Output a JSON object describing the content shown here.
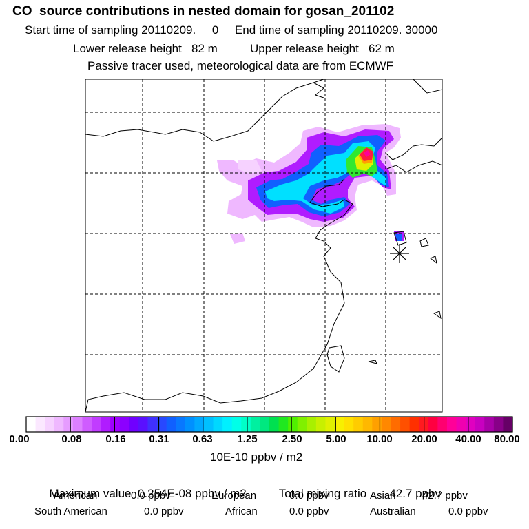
{
  "header": {
    "title": "CO  source contributions in nested domain for gosan_201102",
    "sampling": "Start time of sampling 20110209.     0     End time of sampling 20110209. 30000",
    "heights": "Lower release height   82 m          Upper release height   62 m",
    "tracer": "Passive tracer used, meteorological data are from ECMWF"
  },
  "colorbar": {
    "tick_labels": [
      "0.00",
      "0.08",
      "0.16",
      "0.31",
      "0.63",
      "1.25",
      "2.50",
      "5.00",
      "10.00",
      "20.00",
      "40.00",
      "80.00"
    ],
    "unit": "10E-10 ppbv / m2",
    "colors": [
      "#ffffff",
      "#fbe8ff",
      "#f6d2ff",
      "#efb8ff",
      "#e69cff",
      "#dd80ff",
      "#cf5cff",
      "#c13cff",
      "#b01cff",
      "#a000ff",
      "#8c00ff",
      "#7000ff",
      "#5a10ff",
      "#4030ff",
      "#2848ff",
      "#1060ff",
      "#0878ff",
      "#0090ff",
      "#00a8ff",
      "#00c0ff",
      "#00d8ff",
      "#00f0ff",
      "#00ffe8",
      "#00ffc8",
      "#00f0a0",
      "#00e880",
      "#00e050",
      "#20e820",
      "#50f000",
      "#80f000",
      "#a8f000",
      "#c8f000",
      "#e0f000",
      "#f8f000",
      "#ffe000",
      "#ffcc00",
      "#ffb800",
      "#ffa000",
      "#ff8800",
      "#ff6c00",
      "#ff5000",
      "#ff3000",
      "#ff1a20",
      "#ff0040",
      "#ff0070",
      "#ff0098",
      "#f000b0",
      "#e000c0",
      "#c800c0",
      "#a800a8",
      "#880088",
      "#660066"
    ]
  },
  "summary": {
    "maximum": "Maximum value  0.254E-08 ppbv / m2",
    "total": "Total mixing ratio       42.7 ppbv"
  },
  "regions": [
    {
      "name": "American",
      "value": "0.0 ppbv"
    },
    {
      "name": "European",
      "value": "0.0 ppbv"
    },
    {
      "name": "Asian",
      "value": "42.7 ppbv"
    },
    {
      "name": "South American",
      "value": "0.0 ppbv"
    },
    {
      "name": "African",
      "value": "0.0 ppbv"
    },
    {
      "name": "Australian",
      "value": "0.0 ppbv"
    }
  ]
}
